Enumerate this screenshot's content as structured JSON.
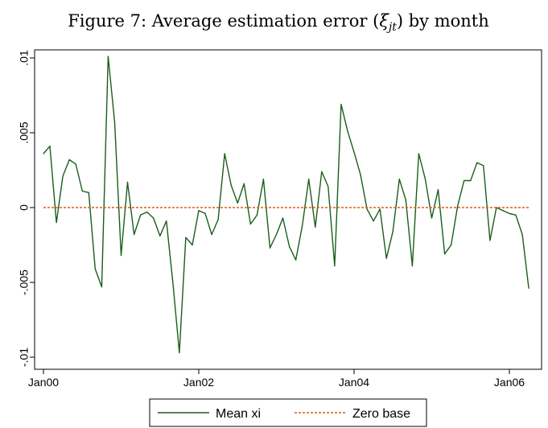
{
  "chart_data": {
    "type": "line",
    "title": "Figure 7: Average estimation error (ξjt) by month",
    "title_main": "Figure 7: Average estimation error (",
    "title_symbol": "ξ",
    "title_subscript": "jt",
    "title_end": ") by month",
    "xlabel": "",
    "ylabel": "",
    "xlim": [
      "2000-01",
      "2006-06"
    ],
    "ylim": [
      -0.01,
      0.01
    ],
    "x_ticks": [
      {
        "label": "Jan00",
        "date": "2000-01"
      },
      {
        "label": "Jan02",
        "date": "2002-01"
      },
      {
        "label": "Jan04",
        "date": "2004-01"
      },
      {
        "label": "Jan06",
        "date": "2006-01"
      }
    ],
    "y_ticks": [
      {
        "label": ".01",
        "value": 0.01
      },
      {
        "label": ".005",
        "value": 0.005
      },
      {
        "label": "0",
        "value": 0
      },
      {
        "label": "-.005",
        "value": -0.005
      },
      {
        "label": "-.01",
        "value": -0.01
      }
    ],
    "grid": false,
    "legend_position": "bottom",
    "series": [
      {
        "name": "Mean xi",
        "color": "#1a5e1a",
        "style": "solid",
        "points": [
          {
            "x": "2000-01",
            "y": 0.0036
          },
          {
            "x": "2000-02",
            "y": 0.0041
          },
          {
            "x": "2000-03",
            "y": -0.001
          },
          {
            "x": "2000-04",
            "y": 0.0021
          },
          {
            "x": "2000-05",
            "y": 0.0032
          },
          {
            "x": "2000-06",
            "y": 0.0029
          },
          {
            "x": "2000-07",
            "y": 0.0011
          },
          {
            "x": "2000-08",
            "y": 0.001
          },
          {
            "x": "2000-09",
            "y": -0.0041
          },
          {
            "x": "2000-10",
            "y": -0.0053
          },
          {
            "x": "2000-11",
            "y": 0.0101
          },
          {
            "x": "2000-12",
            "y": 0.0057
          },
          {
            "x": "2001-01",
            "y": -0.0032
          },
          {
            "x": "2001-02",
            "y": 0.0017
          },
          {
            "x": "2001-03",
            "y": -0.0018
          },
          {
            "x": "2001-04",
            "y": -0.0005
          },
          {
            "x": "2001-05",
            "y": -0.0003
          },
          {
            "x": "2001-06",
            "y": -0.0007
          },
          {
            "x": "2001-07",
            "y": -0.0019
          },
          {
            "x": "2001-08",
            "y": -0.0009
          },
          {
            "x": "2001-09",
            "y": -0.005
          },
          {
            "x": "2001-10",
            "y": -0.0097
          },
          {
            "x": "2001-11",
            "y": -0.002
          },
          {
            "x": "2001-12",
            "y": -0.0025
          },
          {
            "x": "2002-01",
            "y": -0.0002
          },
          {
            "x": "2002-02",
            "y": -0.0004
          },
          {
            "x": "2002-03",
            "y": -0.0018
          },
          {
            "x": "2002-04",
            "y": -0.0008
          },
          {
            "x": "2002-05",
            "y": 0.0036
          },
          {
            "x": "2002-06",
            "y": 0.0015
          },
          {
            "x": "2002-07",
            "y": 0.0003
          },
          {
            "x": "2002-08",
            "y": 0.0016
          },
          {
            "x": "2002-09",
            "y": -0.0011
          },
          {
            "x": "2002-10",
            "y": -0.0005
          },
          {
            "x": "2002-11",
            "y": 0.0019
          },
          {
            "x": "2002-12",
            "y": -0.0027
          },
          {
            "x": "2003-01",
            "y": -0.0018
          },
          {
            "x": "2003-02",
            "y": -0.0007
          },
          {
            "x": "2003-03",
            "y": -0.0026
          },
          {
            "x": "2003-04",
            "y": -0.0035
          },
          {
            "x": "2003-05",
            "y": -0.0012
          },
          {
            "x": "2003-06",
            "y": 0.0019
          },
          {
            "x": "2003-07",
            "y": -0.0013
          },
          {
            "x": "2003-08",
            "y": 0.0024
          },
          {
            "x": "2003-09",
            "y": 0.0014
          },
          {
            "x": "2003-10",
            "y": -0.0039
          },
          {
            "x": "2003-11",
            "y": 0.0069
          },
          {
            "x": "2003-12",
            "y": 0.0051
          },
          {
            "x": "2004-01",
            "y": 0.0037
          },
          {
            "x": "2004-02",
            "y": 0.0022
          },
          {
            "x": "2004-03",
            "y": -0.0001
          },
          {
            "x": "2004-04",
            "y": -0.0009
          },
          {
            "x": "2004-05",
            "y": -0.0001
          },
          {
            "x": "2004-06",
            "y": -0.0034
          },
          {
            "x": "2004-07",
            "y": -0.0016
          },
          {
            "x": "2004-08",
            "y": 0.0019
          },
          {
            "x": "2004-09",
            "y": 0.0005
          },
          {
            "x": "2004-10",
            "y": -0.0039
          },
          {
            "x": "2004-11",
            "y": 0.0036
          },
          {
            "x": "2004-12",
            "y": 0.0019
          },
          {
            "x": "2005-01",
            "y": -0.0007
          },
          {
            "x": "2005-02",
            "y": 0.0012
          },
          {
            "x": "2005-03",
            "y": -0.0031
          },
          {
            "x": "2005-04",
            "y": -0.0025
          },
          {
            "x": "2005-05",
            "y": 0.0001
          },
          {
            "x": "2005-06",
            "y": 0.0018
          },
          {
            "x": "2005-07",
            "y": 0.0018
          },
          {
            "x": "2005-08",
            "y": 0.003
          },
          {
            "x": "2005-09",
            "y": 0.0028
          },
          {
            "x": "2005-10",
            "y": -0.0022
          },
          {
            "x": "2005-11",
            "y": 0.0
          },
          {
            "x": "2005-12",
            "y": -0.0002
          },
          {
            "x": "2006-01",
            "y": -0.0004
          },
          {
            "x": "2006-02",
            "y": -0.0005
          },
          {
            "x": "2006-03",
            "y": -0.0018
          },
          {
            "x": "2006-04",
            "y": -0.0054
          }
        ]
      },
      {
        "name": "Zero base",
        "color": "#e05a10",
        "style": "dashed",
        "points": [
          {
            "x": "2000-01",
            "y": 0
          },
          {
            "x": "2006-04",
            "y": 0
          }
        ]
      }
    ]
  }
}
